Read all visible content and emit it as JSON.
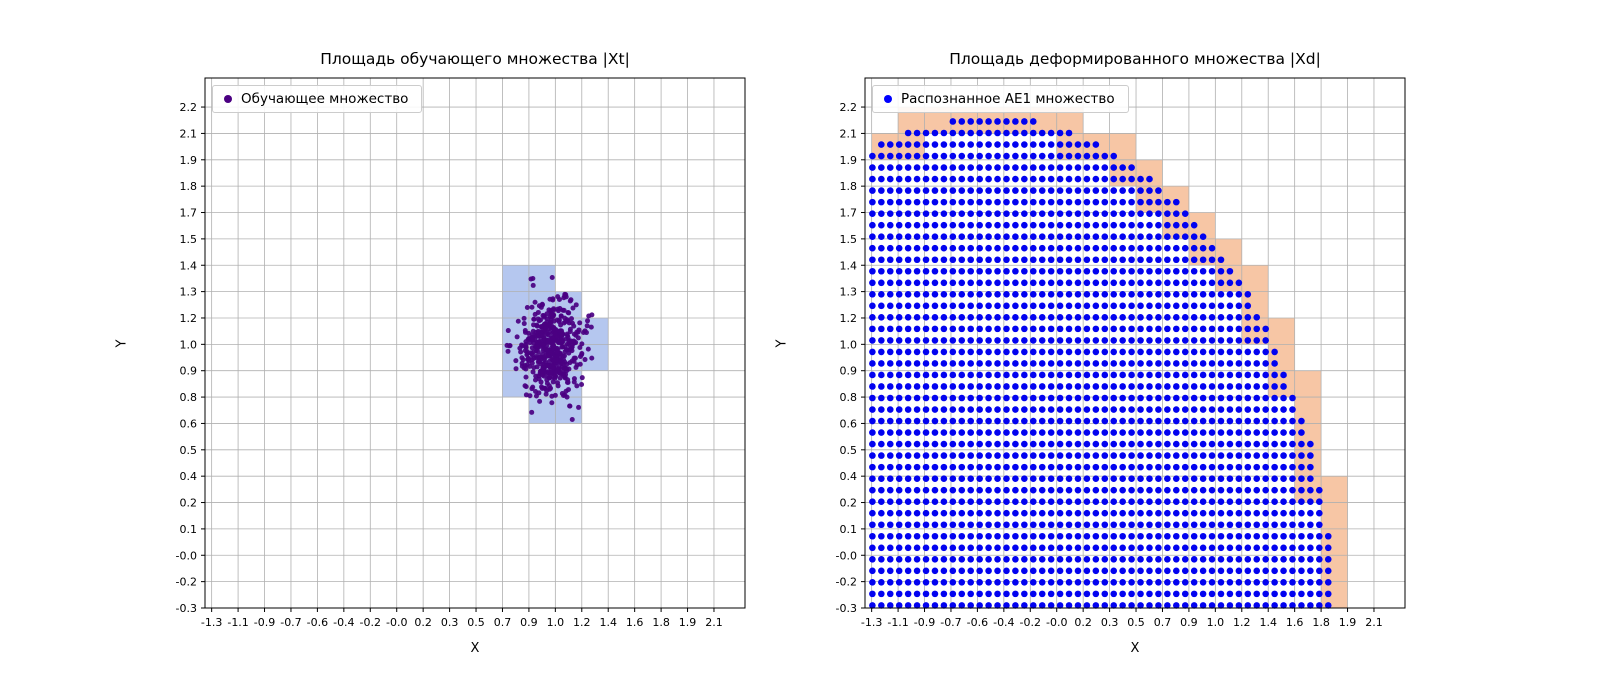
{
  "figure": {
    "background_color": "#ffffff"
  },
  "chart_data": [
    {
      "type": "scatter",
      "title": "Площадь обучающего множества |Xt|",
      "xlabel": "X",
      "ylabel": "Y",
      "grid": true,
      "grid_color": "#b0b0b0",
      "legend": {
        "label": "Обучающее множество",
        "marker_color": "#4b0082",
        "position": "upper left"
      },
      "xtick_labels": [
        "-1.3",
        "-1.1",
        "-0.9",
        "-0.7",
        "-0.6",
        "-0.4",
        "-0.2",
        "-0.0",
        "0.2",
        "0.3",
        "0.5",
        "0.7",
        "0.9",
        "1.0",
        "1.2",
        "1.4",
        "1.6",
        "1.8",
        "1.9",
        "2.1"
      ],
      "ytick_labels": [
        "-0.3",
        "-0.2",
        "-0.0",
        "0.1",
        "0.2",
        "0.4",
        "0.5",
        "0.6",
        "0.8",
        "0.9",
        "1.0",
        "1.2",
        "1.3",
        "1.4",
        "1.5",
        "1.7",
        "1.8",
        "1.9",
        "2.1",
        "2.2"
      ],
      "xtick_range": [
        -1.3,
        2.1
      ],
      "ytick_range": [
        -0.3,
        2.2
      ],
      "xlim": [
        -1.345,
        2.31
      ],
      "ylim": [
        -0.3,
        2.345
      ],
      "cell_fill": {
        "color": "#b5c7ef",
        "cells": [
          [
            11,
            12
          ],
          [
            12,
            12
          ],
          [
            11,
            11
          ],
          [
            12,
            11
          ],
          [
            13,
            11
          ],
          [
            11,
            10
          ],
          [
            12,
            10
          ],
          [
            13,
            10
          ],
          [
            14,
            10
          ],
          [
            11,
            9
          ],
          [
            12,
            9
          ],
          [
            13,
            9
          ],
          [
            14,
            9
          ],
          [
            11,
            8
          ],
          [
            12,
            8
          ],
          [
            13,
            8
          ],
          [
            12,
            7
          ],
          [
            13,
            7
          ]
        ]
      },
      "cluster": {
        "center": [
          1.0,
          1.0
        ],
        "std": [
          0.105,
          0.12
        ],
        "count": 520,
        "color": "#4b0082",
        "point_radius": 2.5
      }
    },
    {
      "type": "scatter",
      "title": "Площадь деформированного множества |Xd|",
      "xlabel": "X",
      "ylabel": "Y",
      "grid": true,
      "grid_color": "#b0b0b0",
      "legend": {
        "label": "Распознанное AE1 множество",
        "marker_color": "#0000ff",
        "position": "upper left"
      },
      "xtick_labels": [
        "-1.3",
        "-1.1",
        "-0.9",
        "-0.7",
        "-0.6",
        "-0.4",
        "-0.2",
        "-0.0",
        "0.2",
        "0.3",
        "0.5",
        "0.7",
        "0.9",
        "1.0",
        "1.2",
        "1.4",
        "1.6",
        "1.8",
        "1.9",
        "2.1"
      ],
      "ytick_labels": [
        "-0.3",
        "-0.2",
        "-0.0",
        "0.1",
        "0.2",
        "0.4",
        "0.5",
        "0.6",
        "0.8",
        "0.9",
        "1.0",
        "1.2",
        "1.3",
        "1.4",
        "1.5",
        "1.7",
        "1.8",
        "1.9",
        "2.1",
        "2.2"
      ],
      "xtick_range": [
        -1.3,
        2.1
      ],
      "ytick_range": [
        -0.3,
        2.2
      ],
      "xlim": [
        -1.345,
        2.31
      ],
      "ylim": [
        -0.3,
        2.345
      ],
      "cell_fill": {
        "color": "#f7c6a5",
        "mode": "region-boundary"
      },
      "dot_grid": {
        "start": [
          -1.295,
          -0.287
        ],
        "step": [
          0.0605,
          0.0575
        ],
        "point_radius": 3.3,
        "color": "#0202f0",
        "region": {
          "shape": "ellipse",
          "center": [
            -0.5,
            -0.5
          ],
          "radii": [
            2.35,
            2.65
          ]
        }
      }
    }
  ]
}
